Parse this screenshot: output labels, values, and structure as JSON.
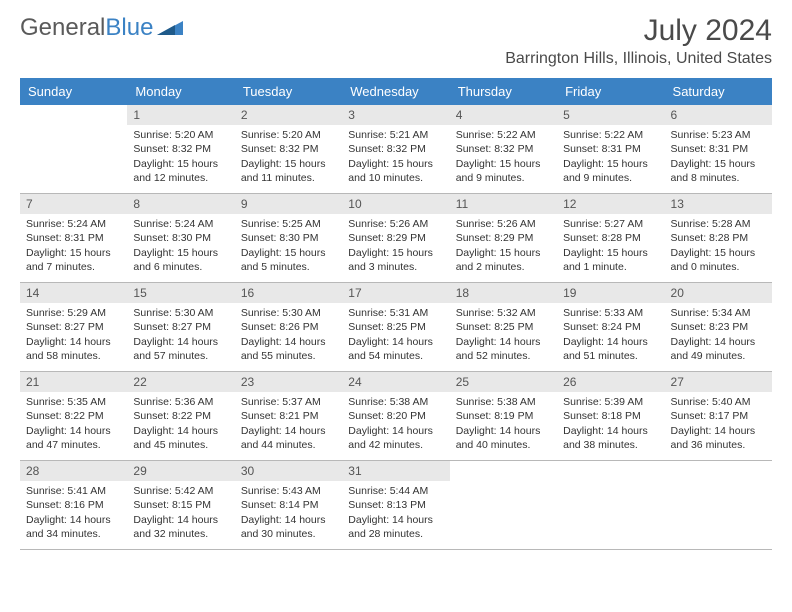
{
  "brand": {
    "part1": "General",
    "part2": "Blue"
  },
  "title": "July 2024",
  "location": "Barrington Hills, Illinois, United States",
  "colors": {
    "header_bg": "#3b82c4",
    "header_text": "#ffffff",
    "daynum_bg": "#e8e8e8",
    "border": "#b8b8b8",
    "text": "#333333",
    "page_bg": "#ffffff"
  },
  "dayNames": [
    "Sunday",
    "Monday",
    "Tuesday",
    "Wednesday",
    "Thursday",
    "Friday",
    "Saturday"
  ],
  "weeks": [
    [
      {
        "n": "",
        "sr": "",
        "ss": "",
        "dl1": "",
        "dl2": ""
      },
      {
        "n": "1",
        "sr": "Sunrise: 5:20 AM",
        "ss": "Sunset: 8:32 PM",
        "dl1": "Daylight: 15 hours",
        "dl2": "and 12 minutes."
      },
      {
        "n": "2",
        "sr": "Sunrise: 5:20 AM",
        "ss": "Sunset: 8:32 PM",
        "dl1": "Daylight: 15 hours",
        "dl2": "and 11 minutes."
      },
      {
        "n": "3",
        "sr": "Sunrise: 5:21 AM",
        "ss": "Sunset: 8:32 PM",
        "dl1": "Daylight: 15 hours",
        "dl2": "and 10 minutes."
      },
      {
        "n": "4",
        "sr": "Sunrise: 5:22 AM",
        "ss": "Sunset: 8:32 PM",
        "dl1": "Daylight: 15 hours",
        "dl2": "and 9 minutes."
      },
      {
        "n": "5",
        "sr": "Sunrise: 5:22 AM",
        "ss": "Sunset: 8:31 PM",
        "dl1": "Daylight: 15 hours",
        "dl2": "and 9 minutes."
      },
      {
        "n": "6",
        "sr": "Sunrise: 5:23 AM",
        "ss": "Sunset: 8:31 PM",
        "dl1": "Daylight: 15 hours",
        "dl2": "and 8 minutes."
      }
    ],
    [
      {
        "n": "7",
        "sr": "Sunrise: 5:24 AM",
        "ss": "Sunset: 8:31 PM",
        "dl1": "Daylight: 15 hours",
        "dl2": "and 7 minutes."
      },
      {
        "n": "8",
        "sr": "Sunrise: 5:24 AM",
        "ss": "Sunset: 8:30 PM",
        "dl1": "Daylight: 15 hours",
        "dl2": "and 6 minutes."
      },
      {
        "n": "9",
        "sr": "Sunrise: 5:25 AM",
        "ss": "Sunset: 8:30 PM",
        "dl1": "Daylight: 15 hours",
        "dl2": "and 5 minutes."
      },
      {
        "n": "10",
        "sr": "Sunrise: 5:26 AM",
        "ss": "Sunset: 8:29 PM",
        "dl1": "Daylight: 15 hours",
        "dl2": "and 3 minutes."
      },
      {
        "n": "11",
        "sr": "Sunrise: 5:26 AM",
        "ss": "Sunset: 8:29 PM",
        "dl1": "Daylight: 15 hours",
        "dl2": "and 2 minutes."
      },
      {
        "n": "12",
        "sr": "Sunrise: 5:27 AM",
        "ss": "Sunset: 8:28 PM",
        "dl1": "Daylight: 15 hours",
        "dl2": "and 1 minute."
      },
      {
        "n": "13",
        "sr": "Sunrise: 5:28 AM",
        "ss": "Sunset: 8:28 PM",
        "dl1": "Daylight: 15 hours",
        "dl2": "and 0 minutes."
      }
    ],
    [
      {
        "n": "14",
        "sr": "Sunrise: 5:29 AM",
        "ss": "Sunset: 8:27 PM",
        "dl1": "Daylight: 14 hours",
        "dl2": "and 58 minutes."
      },
      {
        "n": "15",
        "sr": "Sunrise: 5:30 AM",
        "ss": "Sunset: 8:27 PM",
        "dl1": "Daylight: 14 hours",
        "dl2": "and 57 minutes."
      },
      {
        "n": "16",
        "sr": "Sunrise: 5:30 AM",
        "ss": "Sunset: 8:26 PM",
        "dl1": "Daylight: 14 hours",
        "dl2": "and 55 minutes."
      },
      {
        "n": "17",
        "sr": "Sunrise: 5:31 AM",
        "ss": "Sunset: 8:25 PM",
        "dl1": "Daylight: 14 hours",
        "dl2": "and 54 minutes."
      },
      {
        "n": "18",
        "sr": "Sunrise: 5:32 AM",
        "ss": "Sunset: 8:25 PM",
        "dl1": "Daylight: 14 hours",
        "dl2": "and 52 minutes."
      },
      {
        "n": "19",
        "sr": "Sunrise: 5:33 AM",
        "ss": "Sunset: 8:24 PM",
        "dl1": "Daylight: 14 hours",
        "dl2": "and 51 minutes."
      },
      {
        "n": "20",
        "sr": "Sunrise: 5:34 AM",
        "ss": "Sunset: 8:23 PM",
        "dl1": "Daylight: 14 hours",
        "dl2": "and 49 minutes."
      }
    ],
    [
      {
        "n": "21",
        "sr": "Sunrise: 5:35 AM",
        "ss": "Sunset: 8:22 PM",
        "dl1": "Daylight: 14 hours",
        "dl2": "and 47 minutes."
      },
      {
        "n": "22",
        "sr": "Sunrise: 5:36 AM",
        "ss": "Sunset: 8:22 PM",
        "dl1": "Daylight: 14 hours",
        "dl2": "and 45 minutes."
      },
      {
        "n": "23",
        "sr": "Sunrise: 5:37 AM",
        "ss": "Sunset: 8:21 PM",
        "dl1": "Daylight: 14 hours",
        "dl2": "and 44 minutes."
      },
      {
        "n": "24",
        "sr": "Sunrise: 5:38 AM",
        "ss": "Sunset: 8:20 PM",
        "dl1": "Daylight: 14 hours",
        "dl2": "and 42 minutes."
      },
      {
        "n": "25",
        "sr": "Sunrise: 5:38 AM",
        "ss": "Sunset: 8:19 PM",
        "dl1": "Daylight: 14 hours",
        "dl2": "and 40 minutes."
      },
      {
        "n": "26",
        "sr": "Sunrise: 5:39 AM",
        "ss": "Sunset: 8:18 PM",
        "dl1": "Daylight: 14 hours",
        "dl2": "and 38 minutes."
      },
      {
        "n": "27",
        "sr": "Sunrise: 5:40 AM",
        "ss": "Sunset: 8:17 PM",
        "dl1": "Daylight: 14 hours",
        "dl2": "and 36 minutes."
      }
    ],
    [
      {
        "n": "28",
        "sr": "Sunrise: 5:41 AM",
        "ss": "Sunset: 8:16 PM",
        "dl1": "Daylight: 14 hours",
        "dl2": "and 34 minutes."
      },
      {
        "n": "29",
        "sr": "Sunrise: 5:42 AM",
        "ss": "Sunset: 8:15 PM",
        "dl1": "Daylight: 14 hours",
        "dl2": "and 32 minutes."
      },
      {
        "n": "30",
        "sr": "Sunrise: 5:43 AM",
        "ss": "Sunset: 8:14 PM",
        "dl1": "Daylight: 14 hours",
        "dl2": "and 30 minutes."
      },
      {
        "n": "31",
        "sr": "Sunrise: 5:44 AM",
        "ss": "Sunset: 8:13 PM",
        "dl1": "Daylight: 14 hours",
        "dl2": "and 28 minutes."
      },
      {
        "n": "",
        "sr": "",
        "ss": "",
        "dl1": "",
        "dl2": ""
      },
      {
        "n": "",
        "sr": "",
        "ss": "",
        "dl1": "",
        "dl2": ""
      },
      {
        "n": "",
        "sr": "",
        "ss": "",
        "dl1": "",
        "dl2": ""
      }
    ]
  ]
}
